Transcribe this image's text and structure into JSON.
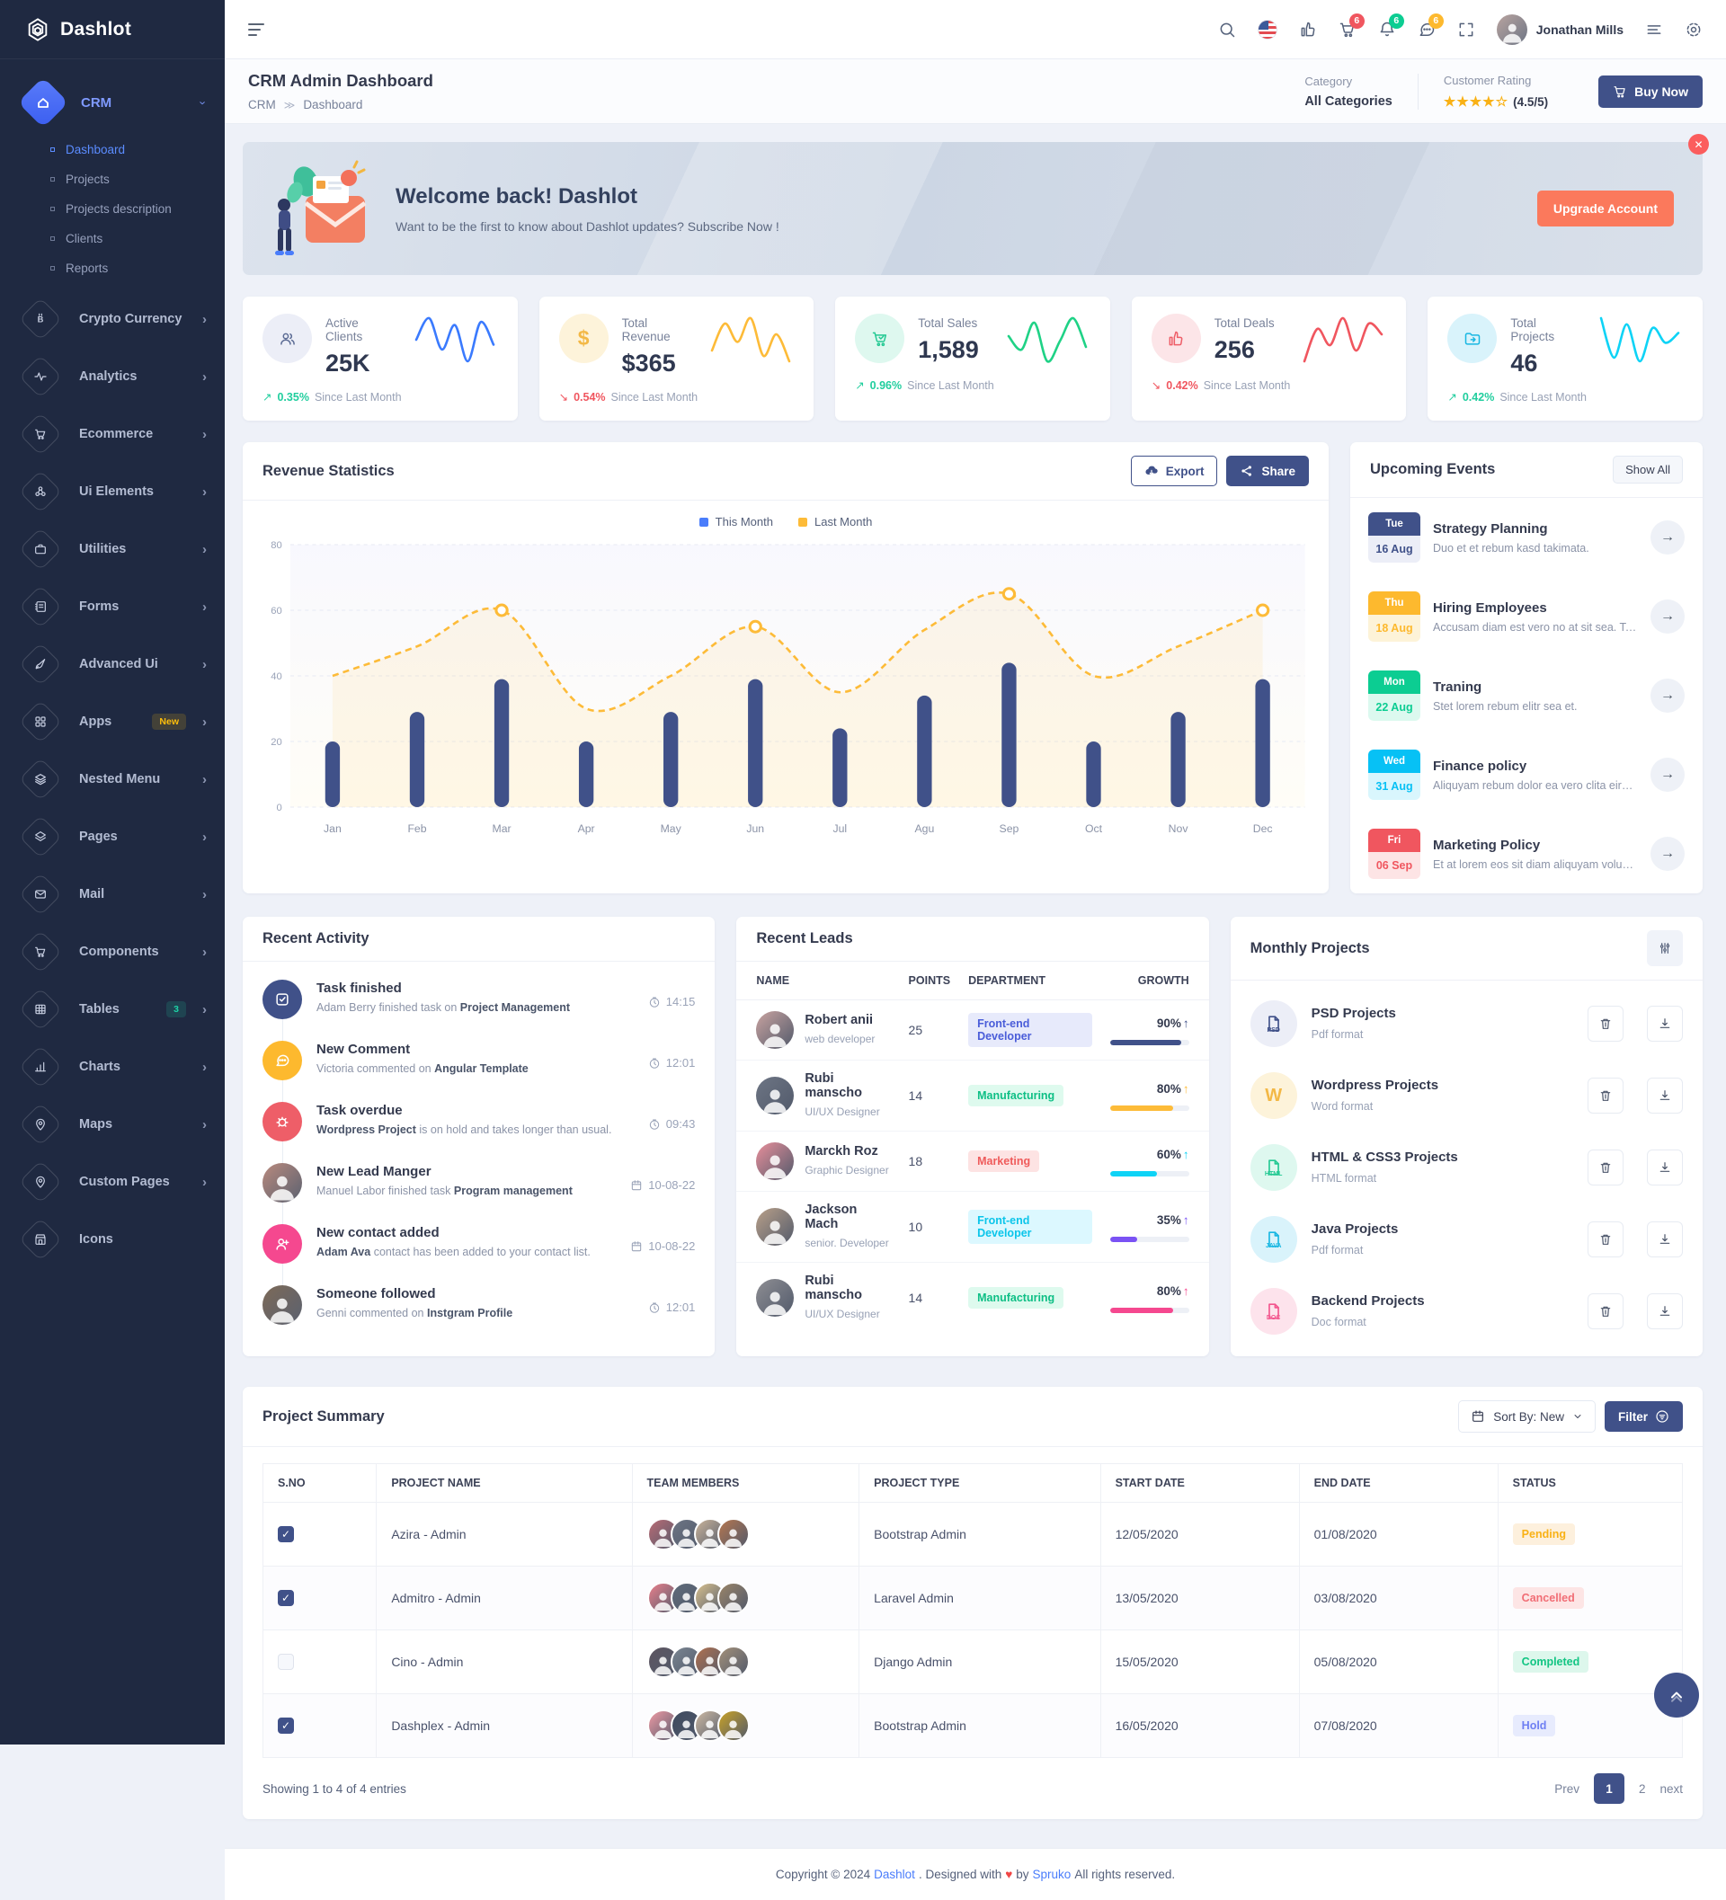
{
  "app": {
    "name": "Dashlot"
  },
  "colors": {
    "primary": "#405189",
    "accent_blue": "#4a7dfb",
    "sidebar_bg": "#1f2941",
    "success": "#21ce9e",
    "danger": "#f0565f",
    "warning": "#fdb92e",
    "info": "#07c1f5",
    "orange": "#fb795c",
    "pink": "#f5488f",
    "stars": "#f9b115"
  },
  "header": {
    "user_name": "Jonathan Mills",
    "cart_badge": "6",
    "bell_badge": "6",
    "chat_badge": "6"
  },
  "page": {
    "title": "CRM Admin Dashboard",
    "breadcrumb_root": "CRM",
    "breadcrumb_sep": "≫",
    "breadcrumb_current": "Dashboard",
    "category_label": "Category",
    "category_value": "All Categories",
    "rating_label": "Customer Rating",
    "stars_full": "★★★★",
    "star_empty": "☆",
    "rating_text": "(4.5/5)",
    "buy_now": "Buy Now"
  },
  "sidebar": {
    "group_label": "CRM",
    "submenu": [
      "Dashboard",
      "Projects",
      "Projects description",
      "Clients",
      "Reports"
    ],
    "items": [
      {
        "label": "Crypto Currency"
      },
      {
        "label": "Analytics"
      },
      {
        "label": "Ecommerce"
      },
      {
        "label": "Ui Elements"
      },
      {
        "label": "Utilities"
      },
      {
        "label": "Forms"
      },
      {
        "label": "Advanced Ui"
      },
      {
        "label": "Apps",
        "badge": "New"
      },
      {
        "label": "Nested Menu"
      },
      {
        "label": "Pages"
      },
      {
        "label": "Mail"
      },
      {
        "label": "Components"
      },
      {
        "label": "Tables",
        "badge": "3"
      },
      {
        "label": "Charts"
      },
      {
        "label": "Maps"
      },
      {
        "label": "Custom Pages"
      },
      {
        "label": "Icons"
      }
    ]
  },
  "banner": {
    "title": "Welcome back! Dashlot",
    "subtitle": "Want to be the first to know about Dashlot updates? Subscribe Now !",
    "button": "Upgrade Account"
  },
  "stats": [
    {
      "title": "Active Clients",
      "value": "25K",
      "arrow": "↗",
      "dir": "up",
      "pct": "0.35%",
      "note": "Since Last Month",
      "color": "#3a7afe",
      "spark": [
        40,
        62,
        30,
        55,
        18,
        58,
        35
      ]
    },
    {
      "title": "Total Revenue",
      "value": "$365",
      "arrow": "↘",
      "dir": "down",
      "pct": "0.54%",
      "note": "Since Last Month",
      "color": "#fdbb38",
      "spark": [
        30,
        55,
        38,
        60,
        25,
        45,
        20
      ]
    },
    {
      "title": "Total Sales",
      "value": "1,589",
      "arrow": "↗",
      "dir": "up",
      "pct": "0.96%",
      "note": "Since Last Month",
      "color": "#1fd286",
      "spark": [
        40,
        25,
        55,
        12,
        35,
        60,
        28
      ]
    },
    {
      "title": "Total Deals",
      "value": "256",
      "arrow": "↘",
      "dir": "down",
      "pct": "0.42%",
      "note": "Since Last Month",
      "color": "#f0565f",
      "spark": [
        15,
        45,
        30,
        55,
        25,
        50,
        40
      ]
    },
    {
      "title": "Total Projects",
      "value": "46",
      "arrow": "↗",
      "dir": "up",
      "pct": "0.42%",
      "note": "Since Last Month",
      "color": "#0ed3f6",
      "spark": [
        50,
        18,
        45,
        15,
        42,
        30,
        38
      ]
    }
  ],
  "revenue": {
    "title": "Revenue Statistics",
    "export_label": "Export",
    "share_label": "Share"
  },
  "chart_data": {
    "type": "bar",
    "title": "Revenue Statistics",
    "categories": [
      "Jan",
      "Feb",
      "Mar",
      "Apr",
      "May",
      "Jun",
      "Jul",
      "Agu",
      "Sep",
      "Oct",
      "Nov",
      "Dec"
    ],
    "series": [
      {
        "name": "This Month",
        "type": "bar",
        "color": "#405189",
        "values": [
          20,
          29,
          39,
          20,
          29,
          39,
          24,
          34,
          44,
          20,
          29,
          39
        ]
      },
      {
        "name": "Last Month",
        "type": "line",
        "style": "dashed",
        "color": "#fdbb38",
        "values": [
          40,
          49,
          60,
          30,
          40,
          55,
          35,
          54,
          65,
          40,
          49,
          60
        ],
        "markers": [
          2,
          5,
          8,
          11
        ]
      }
    ],
    "ylim": [
      0,
      80
    ],
    "yticks": [
      0,
      20,
      40,
      60,
      80
    ],
    "grid": true,
    "legend_position": "top",
    "legend_colors": {
      "this_month": "#4a7dfb",
      "last_month": "#fdbb38"
    }
  },
  "events": {
    "title": "Upcoming Events",
    "show_all": "Show All",
    "items": [
      {
        "day": "Tue",
        "date": "16 Aug",
        "title": "Strategy Planning",
        "desc": "Duo et et rebum kasd takimata.",
        "color": "#405189"
      },
      {
        "day": "Thu",
        "date": "18 Aug",
        "title": "Hiring Employees",
        "desc": "Accusam diam est vero no at sit sea. Te…",
        "color": "#fdb92e"
      },
      {
        "day": "Mon",
        "date": "22 Aug",
        "title": "Traning",
        "desc": "Stet lorem rebum elitr sea et.",
        "color": "#0ccd92"
      },
      {
        "day": "Wed",
        "date": "31 Aug",
        "title": "Finance policy",
        "desc": "Aliquyam rebum dolor ea vero clita eirm…",
        "color": "#07c1f5"
      },
      {
        "day": "Fri",
        "date": "06 Sep",
        "title": "Marketing Policy",
        "desc": "Et at lorem eos sit diam aliquyam volupt…",
        "color": "#f0565f"
      }
    ]
  },
  "activity": {
    "title": "Recent Activity",
    "items": [
      {
        "title": "Task finished",
        "pre": "Adam Berry finished task on ",
        "strong": "Project Management",
        "post": "",
        "meta": "14:15",
        "meta_icon": "clock"
      },
      {
        "title": "New Comment",
        "pre": "Victoria commented on ",
        "strong": "Angular Template",
        "post": "",
        "meta": "12:01",
        "meta_icon": "clock"
      },
      {
        "title": "Task overdue",
        "pre": "",
        "strong": "Wordpress Project",
        "post": " is on hold and takes longer than usual.",
        "meta": "09:43",
        "meta_icon": "clock"
      },
      {
        "title": "New Lead Manger",
        "pre": "Manuel Labor finished task ",
        "strong": "Program management",
        "post": "",
        "meta": "10-08-22",
        "meta_icon": "calendar"
      },
      {
        "title": "New contact added",
        "pre": "",
        "strong": "Adam Ava",
        "post": " contact has been added to your contact list.",
        "meta": "10-08-22",
        "meta_icon": "calendar"
      },
      {
        "title": "Someone followed",
        "pre": "Genni commented on ",
        "strong": "Instgram Profile",
        "post": "",
        "meta": "12:01",
        "meta_icon": "clock"
      }
    ]
  },
  "leads": {
    "title": "Recent Leads",
    "headers": [
      "NAME",
      "POINTS",
      "DEPARTMENT",
      "GROWTH"
    ],
    "rows": [
      {
        "name": "Robert anii",
        "role": "web developer",
        "points": "25",
        "dept": "Front-end Developer",
        "growth": 90,
        "growth_label": "90%",
        "arrow": "↑"
      },
      {
        "name": "Rubi manscho",
        "role": "UI/UX Designer",
        "points": "14",
        "dept": "Manufacturing",
        "growth": 80,
        "growth_label": "80%",
        "arrow": "↑"
      },
      {
        "name": "Marckh Roz",
        "role": "Graphic Designer",
        "points": "18",
        "dept": "Marketing",
        "growth": 60,
        "growth_label": "60%",
        "arrow": "↑"
      },
      {
        "name": "Jackson Mach",
        "role": "senior. Developer",
        "points": "10",
        "dept": "Front-end Developer",
        "growth": 35,
        "growth_label": "35%",
        "arrow": "↑"
      },
      {
        "name": "Rubi manscho",
        "role": "UI/UX Designer",
        "points": "14",
        "dept": "Manufacturing",
        "growth": 80,
        "growth_label": "80%",
        "arrow": "↑"
      }
    ]
  },
  "monthly": {
    "title": "Monthly Projects",
    "items": [
      {
        "title": "PSD Projects",
        "sub": "Pdf format",
        "icon_label": "PSD",
        "bg": "#eceef7",
        "color": "#405189"
      },
      {
        "title": "Wordpress Projects",
        "sub": "Word format",
        "icon_label": "W",
        "bg": "#fdf3da",
        "color": "#f3b846"
      },
      {
        "title": "HTML & CSS3 Projects",
        "sub": "HTML format",
        "icon_label": "HTML",
        "bg": "#def8ef",
        "color": "#24c993"
      },
      {
        "title": "Java Projects",
        "sub": "Pdf format",
        "icon_label": "JAVA",
        "bg": "#d9f3fb",
        "color": "#19b7e2"
      },
      {
        "title": "Backend Projects",
        "sub": "Doc format",
        "icon_label": "DOC",
        "bg": "#fde3ec",
        "color": "#f3568e"
      }
    ]
  },
  "summary": {
    "title": "Project Summary",
    "sort_label": "Sort By: New",
    "filter_label": "Filter",
    "headers": [
      "S.NO",
      "PROJECT NAME",
      "TEAM MEMBERS",
      "PROJECT TYPE",
      "START DATE",
      "END DATE",
      "STATUS"
    ],
    "rows": [
      {
        "checked": true,
        "name": "Azira - Admin",
        "type": "Bootstrap Admin",
        "start": "12/05/2020",
        "end": "01/08/2020",
        "status": "Pending"
      },
      {
        "checked": true,
        "name": "Admitro - Admin",
        "type": "Laravel Admin",
        "start": "13/05/2020",
        "end": "03/08/2020",
        "status": "Cancelled"
      },
      {
        "checked": false,
        "name": "Cino - Admin",
        "type": "Django Admin",
        "start": "15/05/2020",
        "end": "05/08/2020",
        "status": "Completed"
      },
      {
        "checked": true,
        "name": "Dashplex - Admin",
        "type": "Bootstrap Admin",
        "start": "16/05/2020",
        "end": "07/08/2020",
        "status": "Hold"
      }
    ],
    "showing": "Showing 1 to 4 of 4 entries",
    "pagination": {
      "prev": "Prev",
      "page1": "1",
      "page2": "2",
      "next": "next"
    }
  },
  "footer": {
    "pre": "Copyright © 2024 ",
    "brand": "Dashlot",
    "mid": ". Designed with ",
    "heart": "♥",
    "by": " by ",
    "company": "Spruko",
    "post": " All rights reserved."
  }
}
